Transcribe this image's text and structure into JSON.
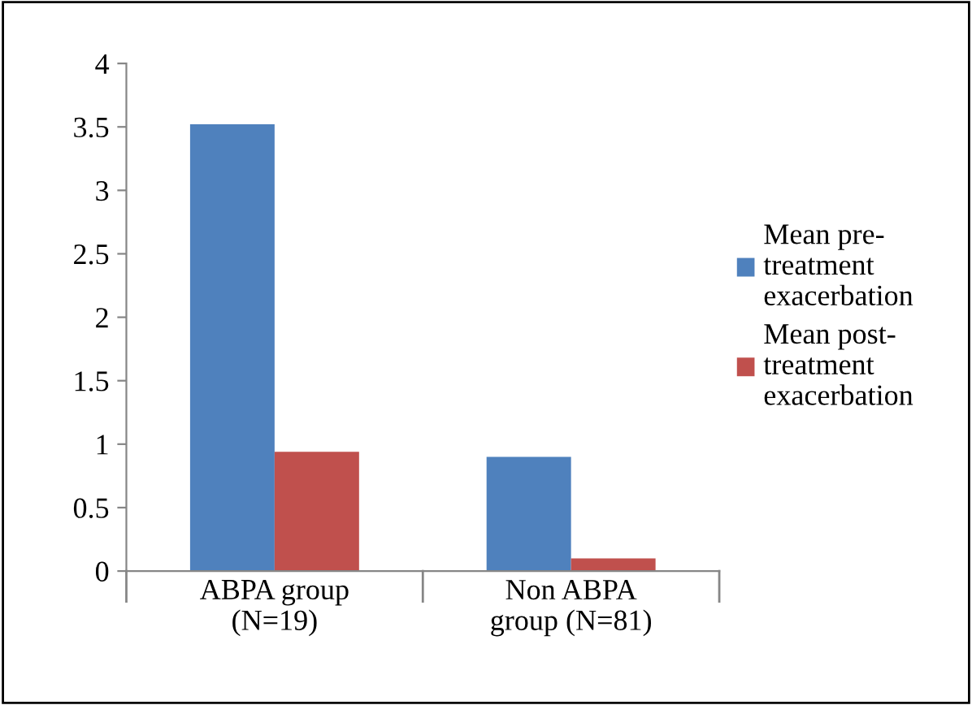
{
  "chart_data": {
    "type": "bar",
    "categories": [
      "ABPA group\n(N=19)",
      "Non ABPA\ngroup (N=81)"
    ],
    "series": [
      {
        "name": "Mean pre-\ntreatment\nexacerbation",
        "color": "#4f81bd",
        "values": [
          3.52,
          0.9
        ]
      },
      {
        "name": "Mean post-\ntreatment\nexacerbation",
        "color": "#c0504d",
        "values": [
          0.94,
          0.1
        ]
      }
    ],
    "ylim": [
      0,
      4
    ],
    "yticks": [
      0,
      0.5,
      1,
      1.5,
      2,
      2.5,
      3,
      3.5,
      4
    ],
    "grid": false,
    "legend": "right"
  }
}
